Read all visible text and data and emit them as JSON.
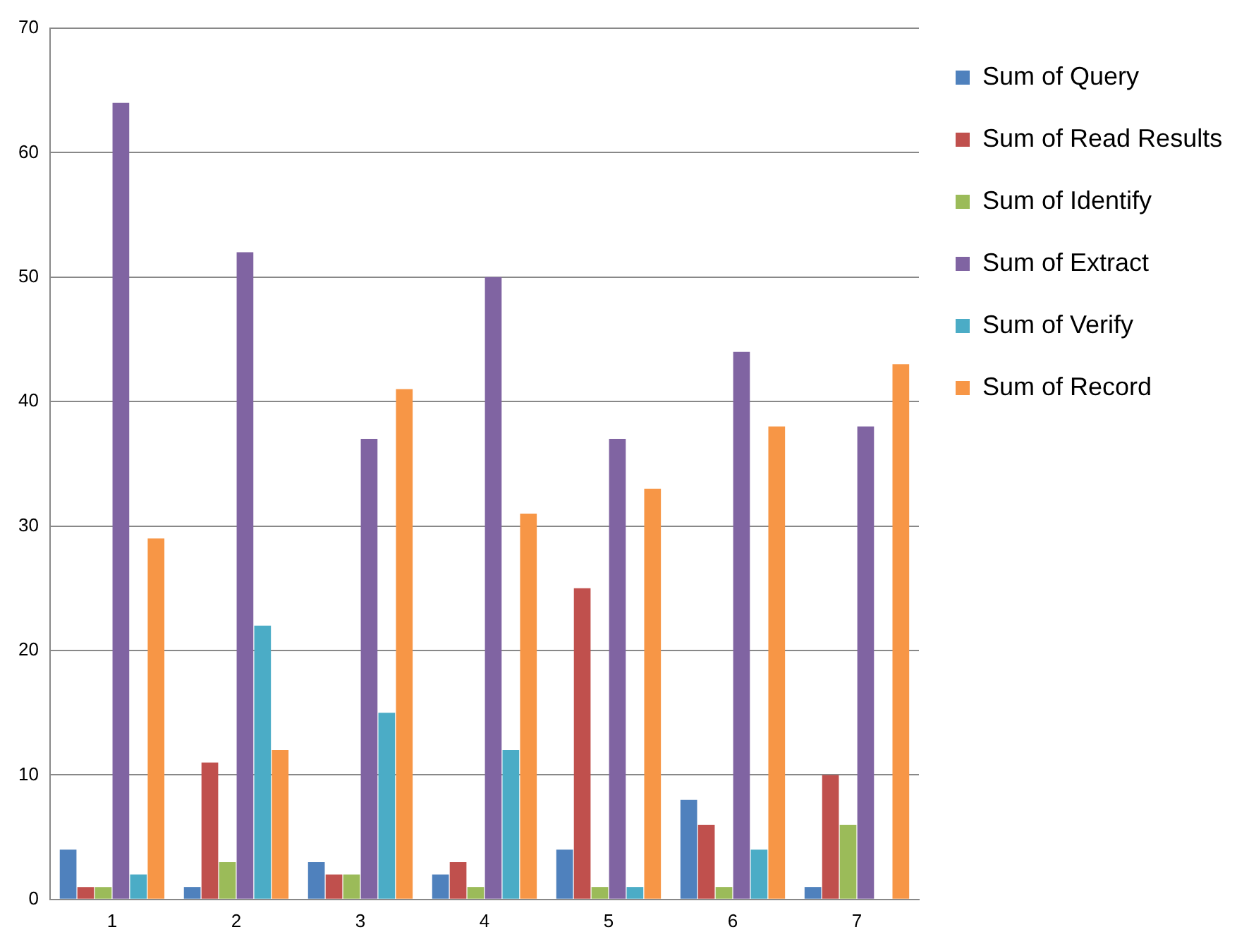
{
  "chart_data": {
    "type": "bar",
    "categories": [
      "1",
      "2",
      "3",
      "4",
      "5",
      "6",
      "7"
    ],
    "series": [
      {
        "name": "Sum of Query",
        "color": "#4f81bd",
        "values": [
          4,
          1,
          3,
          2,
          4,
          8,
          1
        ]
      },
      {
        "name": "Sum of Read Results",
        "color": "#c0504d",
        "values": [
          1,
          11,
          2,
          3,
          25,
          6,
          10
        ]
      },
      {
        "name": "Sum of Identify",
        "color": "#9bbb59",
        "values": [
          1,
          3,
          2,
          1,
          1,
          1,
          6
        ]
      },
      {
        "name": "Sum of Extract",
        "color": "#8064a2",
        "values": [
          64,
          52,
          37,
          50,
          37,
          44,
          38
        ]
      },
      {
        "name": "Sum of Verify",
        "color": "#4bacc6",
        "values": [
          2,
          22,
          15,
          12,
          1,
          4,
          0
        ]
      },
      {
        "name": "Sum of Record",
        "color": "#f79646",
        "values": [
          29,
          12,
          41,
          31,
          33,
          38,
          43
        ]
      }
    ],
    "ylim": [
      0,
      70
    ],
    "yticks": [
      0,
      10,
      20,
      30,
      40,
      50,
      60,
      70
    ],
    "grid": "y",
    "legend": "top right"
  }
}
